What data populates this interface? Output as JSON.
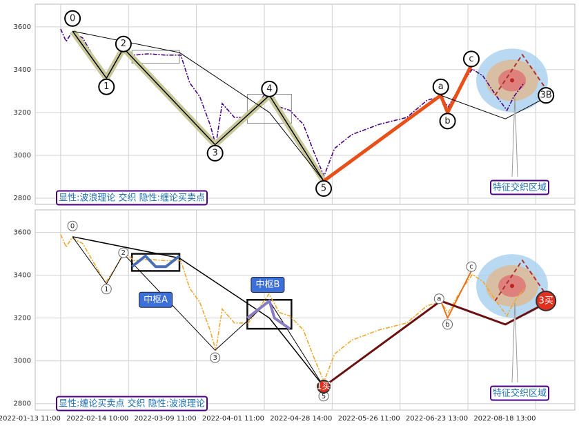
{
  "chart_data": [
    {
      "type": "line",
      "xlim": [
        -7.5,
        151.5
      ],
      "ylim": [
        2771,
        3706
      ],
      "xticks": [
        0,
        20,
        40,
        60,
        80,
        100,
        120,
        140
      ],
      "yticks": [
        2800,
        3000,
        3200,
        3400,
        3600
      ],
      "grid": true,
      "x": [
        0,
        1.6,
        3.3,
        6.5,
        10.6,
        13.2,
        15.6,
        18.7,
        21.7,
        25.8,
        30.9,
        35.4,
        38,
        41,
        44,
        45.7,
        47.6,
        51.2,
        55.3,
        61.4,
        64.4,
        67.5,
        71.5,
        74.6,
        77.6,
        80.7,
        85.8,
        93.9,
        102,
        108,
        112,
        114.2,
        117.3,
        121.3,
        124.4,
        128.5,
        131.5,
        133.5,
        136.6
      ],
      "series": [
        {
          "color": "#4b0082",
          "values": [
            3590,
            3532,
            3574,
            3548,
            3435,
            3365,
            3420,
            3506,
            3468,
            3474,
            3468,
            3468,
            3339,
            3274,
            3145,
            3048,
            3242,
            3177,
            3177,
            3313,
            3226,
            3210,
            3145,
            3016,
            2903,
            3032,
            3097,
            3145,
            3177,
            3258,
            3274,
            3226,
            3313,
            3403,
            3371,
            3274,
            3210,
            3274,
            3339
          ]
        }
      ],
      "waves": [
        {
          "color": "#000000",
          "halo": "#c8c89a",
          "width": 1.5,
          "x": [
            3.5,
            13.5,
            18.5,
            45.5,
            61.5,
            77.5
          ],
          "y": [
            3580,
            3360,
            3500,
            3050,
            3280,
            2880
          ]
        },
        {
          "color": "#e8501a",
          "width": 5,
          "x": [
            77.5,
            112,
            114,
            121
          ],
          "y": [
            2880,
            3280,
            3200,
            3420
          ]
        },
        {
          "color": "#000000",
          "width": 1,
          "x": [
            3.5,
            35,
            61.5,
            77.5
          ],
          "y": [
            3580,
            3480,
            3200,
            2880
          ]
        },
        {
          "color": "#000000",
          "width": 1,
          "x": [
            112,
            131,
            143
          ],
          "y": [
            3280,
            3170,
            3270
          ]
        },
        {
          "color": "#b03030",
          "width": 2,
          "dash": true,
          "x": [
            128,
            136,
            143
          ],
          "y": [
            3280,
            3470,
            3310
          ]
        }
      ],
      "zones": [
        {
          "x": [
            21,
            35
          ],
          "y": [
            3430,
            3490
          ]
        },
        {
          "x": [
            55,
            68
          ],
          "y": [
            3150,
            3285
          ]
        }
      ],
      "feature_zone": {
        "x": 133,
        "y": 3350
      },
      "annotations": [
        {
          "text": "0",
          "x": 3.5,
          "y": 3639
        },
        {
          "text": "1",
          "x": 13.5,
          "y": 3320
        },
        {
          "text": "2",
          "x": 18.5,
          "y": 3520
        },
        {
          "text": "3",
          "x": 45.5,
          "y": 3010
        },
        {
          "text": "4",
          "x": 61.5,
          "y": 3310
        },
        {
          "text": "5",
          "x": 77.5,
          "y": 2845
        },
        {
          "text": "a",
          "x": 112,
          "y": 3320
        },
        {
          "text": "b",
          "x": 114,
          "y": 3160
        },
        {
          "text": "c",
          "x": 121,
          "y": 3450
        },
        {
          "text": "3B",
          "x": 143,
          "y": 3280
        }
      ],
      "notes": [
        "显性:波浪理论 交织 隐性:缠论买卖点",
        "特征交织区域"
      ]
    },
    {
      "type": "line",
      "xlim": [
        -7.5,
        151.5
      ],
      "ylim": [
        2770,
        3705
      ],
      "xticks": [
        {
          "value": 0,
          "label": "2022-01-13 11:00"
        },
        {
          "value": 20,
          "label": "2022-02-14 10:00"
        },
        {
          "value": 40,
          "label": "2022-03-09 11:00"
        },
        {
          "value": 60,
          "label": "2022-04-01 11:00"
        },
        {
          "value": 80,
          "label": "2022-04-28 14:00"
        },
        {
          "value": 100,
          "label": "2022-05-26 11:00"
        },
        {
          "value": 120,
          "label": "2022-06-23 13:00"
        },
        {
          "value": 140,
          "label": "2022-08-18 13:00"
        }
      ],
      "yticks": [
        2800,
        3000,
        3200,
        3400,
        3600
      ],
      "grid": true,
      "x": [
        0,
        1.6,
        3.3,
        6.5,
        10.6,
        13.2,
        15.6,
        18.7,
        21.7,
        25.8,
        30.9,
        35.4,
        38,
        41,
        44,
        45.7,
        47.6,
        51.2,
        55.3,
        61.4,
        64.4,
        67.5,
        71.5,
        74.6,
        77.6,
        80.7,
        85.8,
        93.9,
        102,
        108,
        112,
        114.2,
        117.3,
        121.3,
        124.4,
        128.5,
        131.5,
        133.5,
        136.6
      ],
      "series": [
        {
          "color": "#f0a830",
          "values": [
            3590,
            3532,
            3574,
            3548,
            3435,
            3365,
            3420,
            3506,
            3468,
            3474,
            3468,
            3468,
            3339,
            3274,
            3145,
            3048,
            3242,
            3177,
            3177,
            3313,
            3226,
            3210,
            3145,
            3016,
            2903,
            3032,
            3097,
            3145,
            3177,
            3258,
            3274,
            3226,
            3313,
            3403,
            3371,
            3274,
            3210,
            3274,
            3339
          ]
        }
      ],
      "waves": [
        {
          "color": "#000000",
          "width": 1,
          "x": [
            3.5,
            13.5,
            18.5,
            45.5,
            61.5,
            77.5
          ],
          "y": [
            3580,
            3360,
            3500,
            3050,
            3280,
            2880
          ]
        },
        {
          "color": "#000000",
          "width": 1.5,
          "x": [
            3.5,
            35,
            61.5,
            77.5
          ],
          "y": [
            3580,
            3480,
            3200,
            2880
          ]
        },
        {
          "color": "#4a6fb5",
          "width": 4,
          "x": [
            21,
            25,
            28,
            31,
            35
          ],
          "y": [
            3440,
            3490,
            3440,
            3440,
            3490
          ]
        },
        {
          "color": "#8a7cc0",
          "width": 4,
          "x": [
            55,
            61.5,
            63,
            67.5
          ],
          "y": [
            3200,
            3280,
            3200,
            3150
          ]
        },
        {
          "color": "#e8701a",
          "width": 2,
          "x": [
            77.5,
            112,
            114,
            121
          ],
          "y": [
            2880,
            3280,
            3200,
            3420
          ]
        },
        {
          "color": "#6a1010",
          "width": 3,
          "x": [
            77.5,
            112,
            131,
            143
          ],
          "y": [
            2880,
            3280,
            3170,
            3270
          ]
        },
        {
          "color": "#b03030",
          "width": 2,
          "dash": true,
          "x": [
            128,
            136,
            143
          ],
          "y": [
            3280,
            3470,
            3310
          ]
        }
      ],
      "zones": [
        {
          "x": [
            21,
            35
          ],
          "y": [
            3420,
            3500
          ]
        },
        {
          "x": [
            55,
            68
          ],
          "y": [
            3150,
            3285
          ]
        }
      ],
      "feature_zone": {
        "x": 133,
        "y": 3350
      },
      "annotations": [
        {
          "text": "0",
          "x": 3.5,
          "y": 3630
        },
        {
          "text": "1",
          "x": 13.5,
          "y": 3335
        },
        {
          "text": "2",
          "x": 18.5,
          "y": 3505
        },
        {
          "text": "3",
          "x": 45.5,
          "y": 3015
        },
        {
          "text": "5",
          "x": 77.5,
          "y": 2835
        },
        {
          "text": "a",
          "x": 111.5,
          "y": 3290
        },
        {
          "text": "b",
          "x": 114,
          "y": 3170
        },
        {
          "text": "c",
          "x": 121,
          "y": 3440
        },
        {
          "text": "中枢A",
          "x": 28,
          "y": 3285,
          "style": "tag"
        },
        {
          "text": "中枢B",
          "x": 61,
          "y": 3355,
          "style": "tag"
        },
        {
          "text": "1买",
          "x": 77.5,
          "y": 2880,
          "style": "buy"
        },
        {
          "text": "3买",
          "x": 143,
          "y": 3280,
          "style": "buy"
        }
      ],
      "notes": [
        "显性:缠论买卖点 交织 隐性:波浪理论",
        "特征交织区域"
      ]
    }
  ]
}
